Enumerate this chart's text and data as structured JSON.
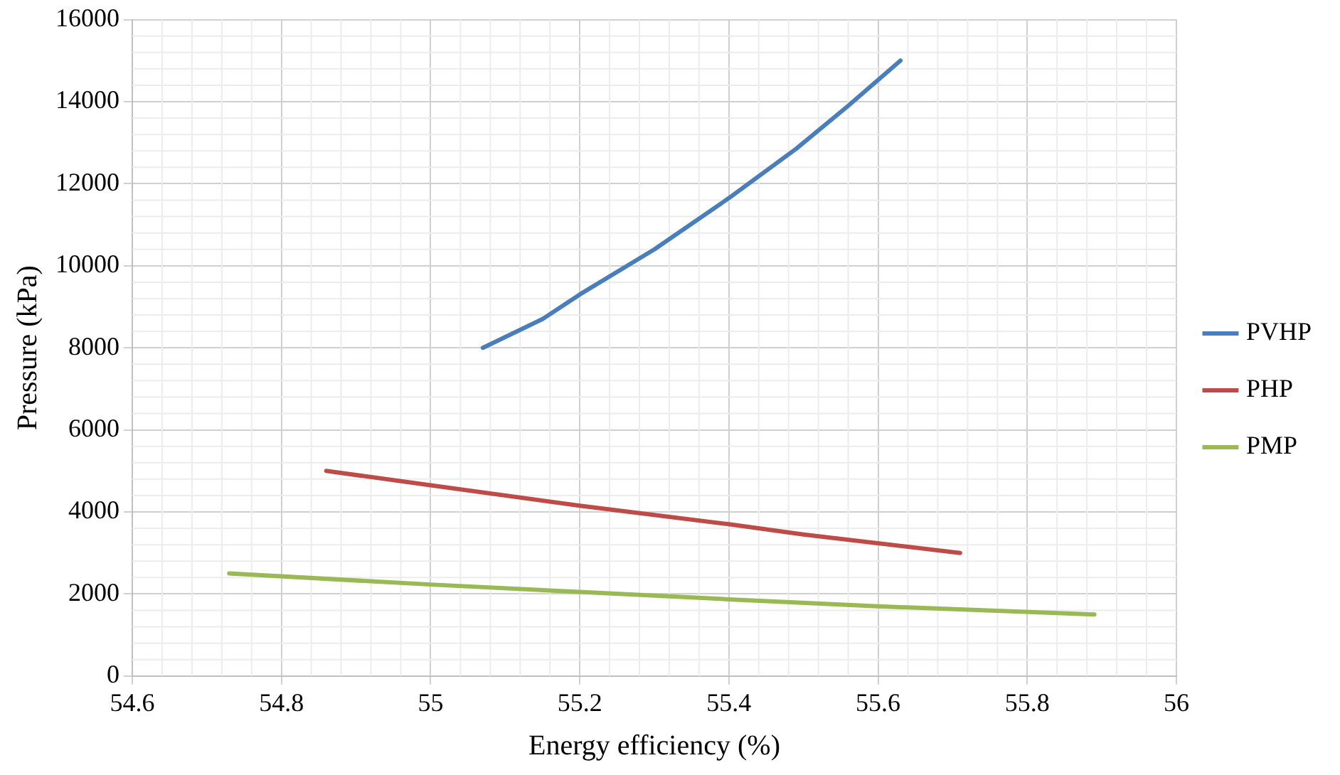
{
  "chart_data": {
    "type": "line",
    "xlabel": "Energy efficiency (%)",
    "ylabel": "Pressure (kPa)",
    "xlim": [
      54.6,
      56
    ],
    "xticks": [
      54.6,
      54.8,
      55,
      55.2,
      55.4,
      55.6,
      55.8,
      56
    ],
    "ylim": [
      0,
      16000
    ],
    "yticks": [
      0,
      2000,
      4000,
      6000,
      8000,
      10000,
      12000,
      14000,
      16000
    ],
    "grid": true,
    "legend": "right",
    "marker": "none",
    "line_style": "solid",
    "series": [
      {
        "name": "PVHP",
        "color": "#4a7ebb",
        "x": [
          55.07,
          55.15,
          55.2,
          55.3,
          55.4,
          55.49,
          55.56,
          55.63
        ],
        "values": [
          8000,
          8700,
          9300,
          10400,
          11650,
          12850,
          13900,
          15000
        ]
      },
      {
        "name": "PHP",
        "color": "#be4b48",
        "x": [
          54.86,
          55.0,
          55.2,
          55.4,
          55.5,
          55.71
        ],
        "values": [
          5000,
          4650,
          4150,
          3700,
          3450,
          3000
        ]
      },
      {
        "name": "PMP",
        "color": "#98b954",
        "x": [
          54.73,
          55.0,
          55.2,
          55.4,
          55.6,
          55.89
        ],
        "values": [
          2500,
          2230,
          2050,
          1870,
          1700,
          1500
        ]
      }
    ]
  }
}
